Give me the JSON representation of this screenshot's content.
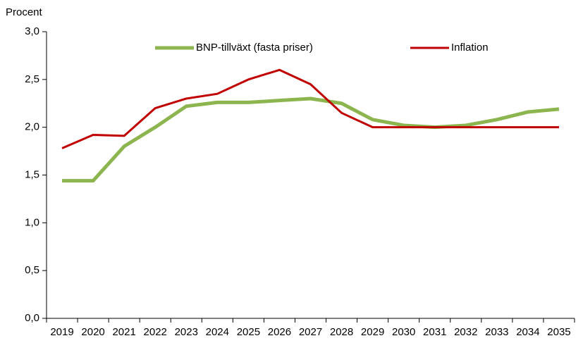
{
  "chart_data": {
    "type": "line",
    "y_axis_label": "Procent",
    "categories": [
      "2019",
      "2020",
      "2021",
      "2022",
      "2023",
      "2024",
      "2025",
      "2026",
      "2027",
      "2028",
      "2029",
      "2030",
      "2031",
      "2032",
      "2033",
      "2034",
      "2035"
    ],
    "series": [
      {
        "name": "BNP-tillväxt (fasta priser)",
        "color": "#8db54f",
        "width": 5,
        "values": [
          1.44,
          1.44,
          1.8,
          2.0,
          2.22,
          2.26,
          2.26,
          2.28,
          2.3,
          2.25,
          2.08,
          2.02,
          2.0,
          2.02,
          2.08,
          2.16,
          2.19
        ]
      },
      {
        "name": "Inflation",
        "color": "#c00000",
        "width": 3,
        "values": [
          1.78,
          1.92,
          1.91,
          2.2,
          2.3,
          2.35,
          2.5,
          2.6,
          2.45,
          2.15,
          2.0,
          2.0,
          2.0,
          2.0,
          2.0,
          2.0,
          2.0
        ]
      }
    ],
    "ylim": [
      0,
      3
    ],
    "yticks": [
      {
        "value": 0,
        "label": "0,0"
      },
      {
        "value": 0.5,
        "label": "0,5"
      },
      {
        "value": 1,
        "label": "1,0"
      },
      {
        "value": 1.5,
        "label": "1,5"
      },
      {
        "value": 2,
        "label": "2,0"
      },
      {
        "value": 2.5,
        "label": "2,5"
      },
      {
        "value": 3,
        "label": "3,0"
      }
    ],
    "grid": false,
    "legend": "top"
  }
}
